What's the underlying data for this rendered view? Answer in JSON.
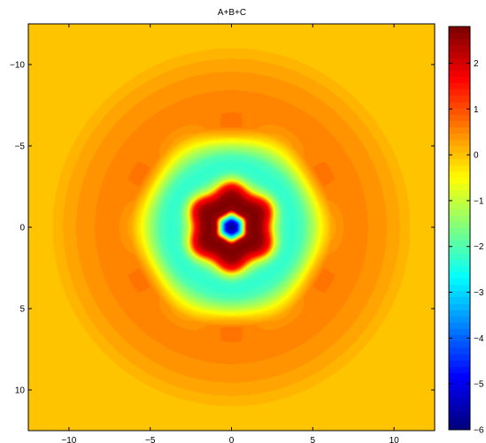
{
  "chart_data": {
    "type": "heatmap",
    "title": "A+B+C",
    "xlabel": "",
    "ylabel": "",
    "xlim": [
      -12.5,
      12.5
    ],
    "ylim": [
      -12.5,
      12.5
    ],
    "y_direction": "reversed",
    "xticks": [
      -10,
      -5,
      0,
      5,
      10
    ],
    "yticks": [
      -10,
      -5,
      0,
      5,
      10
    ],
    "xtick_labels": [
      "−10",
      "−5",
      "0",
      "5",
      "10"
    ],
    "ytick_labels": [
      "−10",
      "−5",
      "0",
      "5",
      "10"
    ],
    "colorbar": {
      "colormap": "jet",
      "range": [
        -6,
        2.8
      ],
      "ticks": [
        2,
        1,
        0,
        -1,
        -2,
        -3,
        -4,
        -5,
        -6
      ],
      "tick_labels": [
        "2",
        "1",
        "0",
        "−1",
        "−2",
        "−3",
        "−4",
        "−5",
        "−6"
      ]
    },
    "field_description": "radially symmetric pattern with six-fold modulation",
    "radial_profile": {
      "r": [
        0,
        0.35,
        0.7,
        1.0,
        1.4,
        1.9,
        2.4,
        2.8,
        3.3,
        3.8,
        4.4,
        5.0,
        5.6,
        6.2,
        7.0,
        7.8,
        8.6,
        9.4,
        10.3,
        11.0,
        12.5,
        17.7
      ],
      "value": [
        -5.9,
        -5.0,
        -1.5,
        2.5,
        2.75,
        2.6,
        1.5,
        -1.0,
        -2.1,
        -2.3,
        -2.0,
        -1.2,
        -0.2,
        0.45,
        0.55,
        0.5,
        0.45,
        0.35,
        0.2,
        0.05,
        0.0,
        0.0
      ]
    },
    "hexagonal_modulation": {
      "symmetry": 6,
      "orientation_deg": 90,
      "amplitude": 0.35,
      "center_r": 2.0,
      "width": 0.9
    },
    "outer_modulation": {
      "symmetry": 6,
      "orientation_deg": 90,
      "amplitude": 0.2,
      "center_r": 5.9,
      "width": 1.0
    }
  }
}
